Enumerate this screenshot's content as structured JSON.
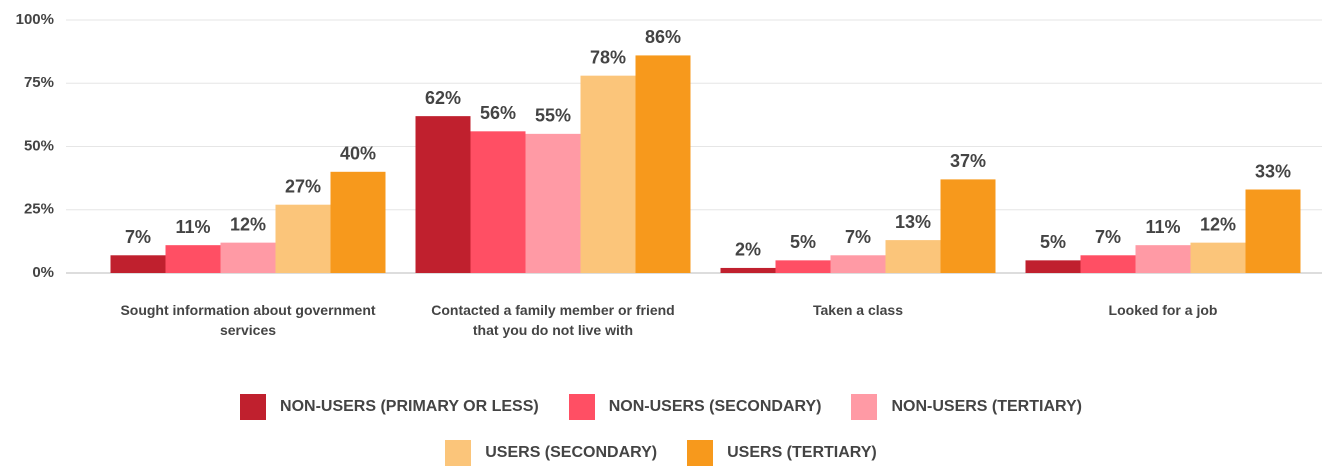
{
  "chart_data": {
    "type": "bar",
    "categories": [
      "Sought information about government services",
      "Contacted a family member or friend that you do not live with",
      "Taken a class",
      "Looked for a job"
    ],
    "series": [
      {
        "name": "NON-USERS (PRIMARY OR LESS)",
        "color": "#c0202e",
        "values": [
          7,
          62,
          2,
          5
        ],
        "value_labels": [
          "7%",
          "62%",
          "2%",
          "5%"
        ]
      },
      {
        "name": "NON-USERS (SECONDARY)",
        "color": "#ff4f64",
        "values": [
          11,
          56,
          5,
          7
        ],
        "value_labels": [
          "11%",
          "56%",
          "5%",
          "7%"
        ]
      },
      {
        "name": "NON-USERS (TERTIARY)",
        "color": "#ff9aa5",
        "values": [
          12,
          55,
          7,
          11
        ],
        "value_labels": [
          "12%",
          "55%",
          "7%",
          "11%"
        ]
      },
      {
        "name": "USERS (SECONDARY)",
        "color": "#fbc57a",
        "values": [
          27,
          78,
          13,
          12
        ],
        "value_labels": [
          "27%",
          "78%",
          "13%",
          "12%"
        ]
      },
      {
        "name": "USERS (TERTIARY)",
        "color": "#f7991c",
        "values": [
          40,
          86,
          37,
          33
        ],
        "value_labels": [
          "40%",
          "86%",
          "37%",
          "33%"
        ]
      }
    ],
    "ylim": [
      0,
      100
    ],
    "yticks": [
      {
        "value": 0,
        "label": "0%"
      },
      {
        "value": 25,
        "label": "25%"
      },
      {
        "value": 50,
        "label": "50%"
      },
      {
        "value": 75,
        "label": "75%"
      },
      {
        "value": 100,
        "label": "100%"
      }
    ],
    "grid": true
  }
}
